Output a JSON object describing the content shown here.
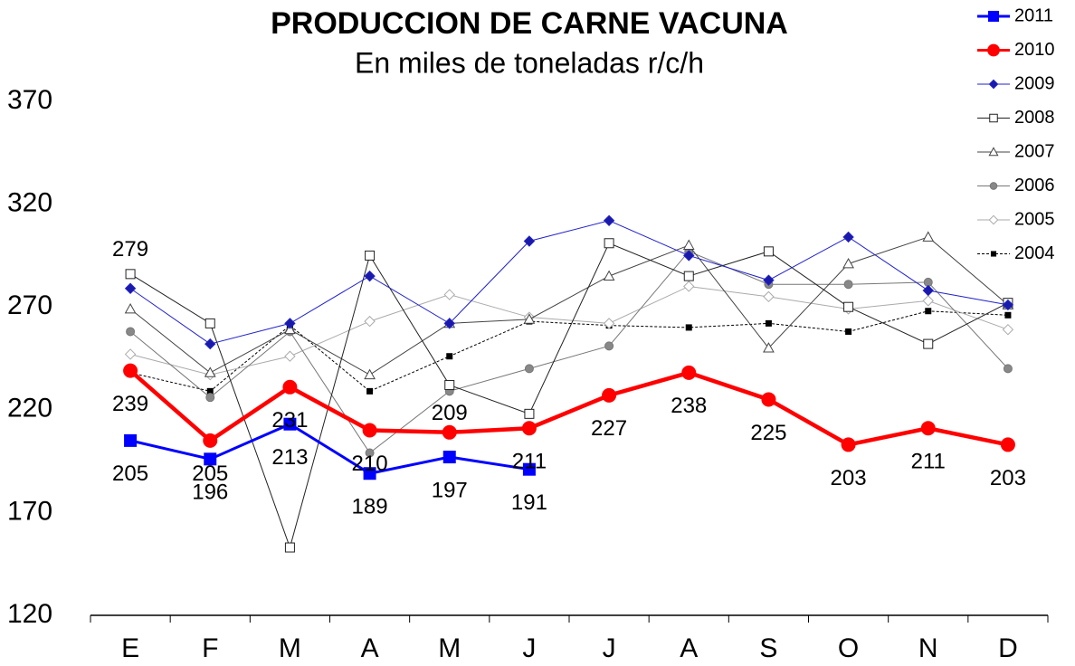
{
  "chart_data": {
    "type": "line",
    "title": "PRODUCCION DE CARNE VACUNA",
    "subtitle": "En miles de toneladas r/c/h",
    "categories": [
      "E",
      "F",
      "M",
      "A",
      "M",
      "J",
      "J",
      "A",
      "S",
      "O",
      "N",
      "D"
    ],
    "ylim": [
      120,
      370
    ],
    "yticks": [
      120,
      170,
      220,
      270,
      320,
      370
    ],
    "grid": false,
    "legend": "top-right",
    "series": [
      {
        "name": "2011",
        "color": "#0000ff",
        "marker": "square",
        "width": 3,
        "marker_fill": "#0000ff",
        "data_labels": "below",
        "values": [
          205,
          196,
          213,
          189,
          197,
          191,
          null,
          null,
          null,
          null,
          null,
          null
        ]
      },
      {
        "name": "2010",
        "color": "#ff0000",
        "marker": "circle",
        "width": 4.5,
        "marker_fill": "#ff0000",
        "data_labels": "below",
        "values": [
          239,
          205,
          231,
          210,
          209,
          211,
          227,
          238,
          225,
          203,
          211,
          203
        ]
      },
      {
        "name": "2009",
        "color": "#2222cc",
        "marker": "diamond",
        "width": 1,
        "marker_fill": "#1a1aa8",
        "data_labels": "first-above",
        "values": [
          279,
          252,
          262,
          285,
          262,
          302,
          312,
          295,
          283,
          304,
          278,
          271
        ]
      },
      {
        "name": "2008",
        "color": "#222222",
        "marker": "square",
        "width": 1,
        "marker_fill": "#ffffff",
        "values": [
          286,
          262,
          153,
          295,
          232,
          218,
          301,
          285,
          297,
          270,
          252,
          272
        ]
      },
      {
        "name": "2007",
        "color": "#444444",
        "marker": "triangle",
        "width": 1,
        "marker_fill": "#ffffff",
        "values": [
          269,
          238,
          259,
          237,
          262,
          264,
          285,
          300,
          250,
          291,
          304,
          271
        ]
      },
      {
        "name": "2006",
        "color": "#777777",
        "marker": "circle",
        "width": 1,
        "marker_fill": "#888888",
        "values": [
          258,
          226,
          258,
          199,
          229,
          240,
          251,
          297,
          281,
          281,
          282,
          240
        ]
      },
      {
        "name": "2005",
        "color": "#aaaaaa",
        "marker": "diamond",
        "width": 1,
        "marker_fill": "#ffffff",
        "values": [
          247,
          237,
          246,
          263,
          276,
          265,
          262,
          280,
          275,
          269,
          273,
          259
        ]
      },
      {
        "name": "2004",
        "color": "#000000",
        "marker": "smallsquare",
        "width": 1,
        "dash": "3,2",
        "marker_fill": "#000000",
        "values": [
          238,
          229,
          261,
          229,
          246,
          263,
          261,
          260,
          262,
          258,
          268,
          266
        ]
      }
    ]
  }
}
